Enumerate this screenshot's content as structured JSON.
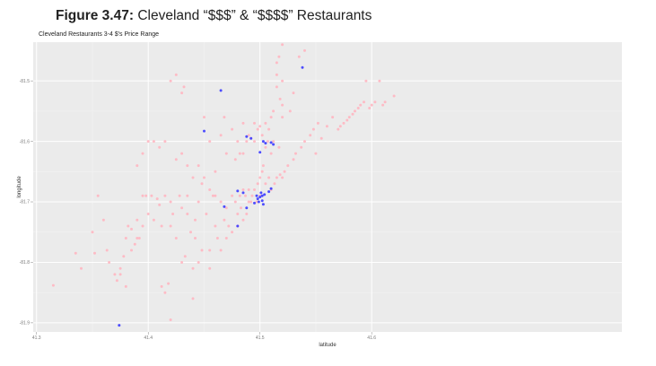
{
  "caption": {
    "label": "Figure 3.47:",
    "text": "Cleveland “$$$” & “$$$$” Restaurants"
  },
  "chart_data": {
    "type": "scatter",
    "title": "Cleveland Restaurants 3-4 $'s Price Range",
    "xlabel": "latitude",
    "ylabel": "longitude",
    "xlim": [
      41.297,
      41.824
    ],
    "ylim": [
      -81.915,
      -81.436
    ],
    "x_ticks": [
      41.3,
      41.4,
      41.5,
      41.6
    ],
    "x_tick_labels": [
      "41.3",
      "41.4",
      "41.5",
      "41.6"
    ],
    "y_ticks": [
      -81.9,
      -81.8,
      -81.7,
      -81.6,
      -81.5
    ],
    "y_tick_labels": [
      "-81.9",
      "-81.8",
      "-81.7",
      "-81.6",
      "-81.5"
    ],
    "grid": true,
    "background": "#ebebeb",
    "series": [
      {
        "color": "#ffb6c1",
        "points": [
          [
            41.315,
            -81.838
          ],
          [
            41.335,
            -81.785
          ],
          [
            41.34,
            -81.81
          ],
          [
            41.35,
            -81.75
          ],
          [
            41.352,
            -81.785
          ],
          [
            41.355,
            -81.69
          ],
          [
            41.36,
            -81.73
          ],
          [
            41.365,
            -81.8
          ],
          [
            41.37,
            -81.82
          ],
          [
            41.372,
            -81.83
          ],
          [
            41.375,
            -81.82
          ],
          [
            41.378,
            -81.79
          ],
          [
            41.38,
            -81.76
          ],
          [
            41.382,
            -81.74
          ],
          [
            41.385,
            -81.78
          ],
          [
            41.388,
            -81.77
          ],
          [
            41.39,
            -81.76
          ],
          [
            41.392,
            -81.76
          ],
          [
            41.395,
            -81.74
          ],
          [
            41.395,
            -81.69
          ],
          [
            41.398,
            -81.69
          ],
          [
            41.4,
            -81.6
          ],
          [
            41.4,
            -81.72
          ],
          [
            41.403,
            -81.69
          ],
          [
            41.405,
            -81.73
          ],
          [
            41.408,
            -81.695
          ],
          [
            41.41,
            -81.705
          ],
          [
            41.412,
            -81.74
          ],
          [
            41.412,
            -81.84
          ],
          [
            41.415,
            -81.69
          ],
          [
            41.415,
            -81.85
          ],
          [
            41.418,
            -81.835
          ],
          [
            41.42,
            -81.7
          ],
          [
            41.42,
            -81.74
          ],
          [
            41.422,
            -81.72
          ],
          [
            41.425,
            -81.76
          ],
          [
            41.425,
            -81.63
          ],
          [
            41.428,
            -81.69
          ],
          [
            41.43,
            -81.71
          ],
          [
            41.43,
            -81.8
          ],
          [
            41.433,
            -81.79
          ],
          [
            41.435,
            -81.72
          ],
          [
            41.435,
            -81.69
          ],
          [
            41.438,
            -81.75
          ],
          [
            41.44,
            -81.81
          ],
          [
            41.44,
            -81.86
          ],
          [
            41.442,
            -81.73
          ],
          [
            41.445,
            -81.8
          ],
          [
            41.445,
            -81.7
          ],
          [
            41.448,
            -81.78
          ],
          [
            41.45,
            -81.66
          ],
          [
            41.452,
            -81.72
          ],
          [
            41.455,
            -81.81
          ],
          [
            41.455,
            -81.78
          ],
          [
            41.458,
            -81.69
          ],
          [
            41.46,
            -81.74
          ],
          [
            41.462,
            -81.76
          ],
          [
            41.465,
            -81.7
          ],
          [
            41.465,
            -81.78
          ],
          [
            41.468,
            -81.73
          ],
          [
            41.47,
            -81.76
          ],
          [
            41.47,
            -81.71
          ],
          [
            41.472,
            -81.74
          ],
          [
            41.475,
            -81.69
          ],
          [
            41.475,
            -81.75
          ],
          [
            41.478,
            -81.7
          ],
          [
            41.48,
            -81.72
          ],
          [
            41.48,
            -81.74
          ],
          [
            41.482,
            -81.69
          ],
          [
            41.483,
            -81.71
          ],
          [
            41.485,
            -81.73
          ],
          [
            41.485,
            -81.68
          ],
          [
            41.487,
            -81.69
          ],
          [
            41.488,
            -81.72
          ],
          [
            41.49,
            -81.7
          ],
          [
            41.49,
            -81.68
          ],
          [
            41.492,
            -81.7
          ],
          [
            41.493,
            -81.69
          ],
          [
            41.495,
            -81.68
          ],
          [
            41.495,
            -81.6
          ],
          [
            41.497,
            -81.7
          ],
          [
            41.498,
            -81.67
          ],
          [
            41.5,
            -81.66
          ],
          [
            41.5,
            -81.69
          ],
          [
            41.502,
            -81.65
          ],
          [
            41.503,
            -81.64
          ],
          [
            41.505,
            -81.61
          ],
          [
            41.505,
            -81.67
          ],
          [
            41.507,
            -81.6
          ],
          [
            41.508,
            -81.66
          ],
          [
            41.51,
            -81.62
          ],
          [
            41.51,
            -81.68
          ],
          [
            41.512,
            -81.6
          ],
          [
            41.513,
            -81.67
          ],
          [
            41.515,
            -81.66
          ],
          [
            41.517,
            -81.61
          ],
          [
            41.518,
            -81.655
          ],
          [
            41.52,
            -81.66
          ],
          [
            41.52,
            -81.56
          ],
          [
            41.522,
            -81.65
          ],
          [
            41.525,
            -81.64
          ],
          [
            41.527,
            -81.55
          ],
          [
            41.53,
            -81.63
          ],
          [
            41.53,
            -81.52
          ],
          [
            41.532,
            -81.62
          ],
          [
            41.535,
            -81.46
          ],
          [
            41.537,
            -81.61
          ],
          [
            41.54,
            -81.6
          ],
          [
            41.54,
            -81.45
          ],
          [
            41.545,
            -81.59
          ],
          [
            41.548,
            -81.58
          ],
          [
            41.55,
            -81.62
          ],
          [
            41.552,
            -81.57
          ],
          [
            41.555,
            -81.595
          ],
          [
            41.56,
            -81.575
          ],
          [
            41.565,
            -81.56
          ],
          [
            41.57,
            -81.58
          ],
          [
            41.572,
            -81.575
          ],
          [
            41.575,
            -81.57
          ],
          [
            41.578,
            -81.565
          ],
          [
            41.58,
            -81.56
          ],
          [
            41.583,
            -81.555
          ],
          [
            41.585,
            -81.55
          ],
          [
            41.588,
            -81.545
          ],
          [
            41.59,
            -81.54
          ],
          [
            41.593,
            -81.535
          ],
          [
            41.595,
            -81.5
          ],
          [
            41.598,
            -81.545
          ],
          [
            41.6,
            -81.54
          ],
          [
            41.603,
            -81.535
          ],
          [
            41.607,
            -81.5
          ],
          [
            41.61,
            -81.54
          ],
          [
            41.612,
            -81.535
          ],
          [
            41.62,
            -81.525
          ],
          [
            41.488,
            -81.6
          ],
          [
            41.49,
            -81.59
          ],
          [
            41.492,
            -81.595
          ],
          [
            41.495,
            -81.57
          ],
          [
            41.498,
            -81.58
          ],
          [
            41.5,
            -81.575
          ],
          [
            41.502,
            -81.59
          ],
          [
            41.505,
            -81.57
          ],
          [
            41.508,
            -81.58
          ],
          [
            41.51,
            -81.56
          ],
          [
            41.512,
            -81.55
          ],
          [
            41.515,
            -81.47
          ],
          [
            41.515,
            -81.49
          ],
          [
            41.515,
            -81.51
          ],
          [
            41.517,
            -81.46
          ],
          [
            41.518,
            -81.53
          ],
          [
            41.52,
            -81.54
          ],
          [
            41.52,
            -81.44
          ],
          [
            41.52,
            -81.5
          ],
          [
            41.43,
            -81.52
          ],
          [
            41.432,
            -81.51
          ],
          [
            41.435,
            -81.64
          ],
          [
            41.44,
            -81.66
          ],
          [
            41.445,
            -81.64
          ],
          [
            41.45,
            -81.56
          ],
          [
            41.455,
            -81.6
          ],
          [
            41.46,
            -81.65
          ],
          [
            41.465,
            -81.59
          ],
          [
            41.468,
            -81.56
          ],
          [
            41.47,
            -81.62
          ],
          [
            41.475,
            -81.58
          ],
          [
            41.478,
            -81.63
          ],
          [
            41.48,
            -81.6
          ],
          [
            41.482,
            -81.62
          ],
          [
            41.485,
            -81.62
          ],
          [
            41.485,
            -81.57
          ],
          [
            41.39,
            -81.64
          ],
          [
            41.395,
            -81.62
          ],
          [
            41.405,
            -81.6
          ],
          [
            41.41,
            -81.61
          ],
          [
            41.415,
            -81.6
          ],
          [
            41.42,
            -81.5
          ],
          [
            41.425,
            -81.49
          ],
          [
            41.43,
            -81.62
          ],
          [
            41.39,
            -81.73
          ],
          [
            41.385,
            -81.745
          ],
          [
            41.363,
            -81.78
          ],
          [
            41.375,
            -81.81
          ],
          [
            41.38,
            -81.84
          ],
          [
            41.42,
            -81.895
          ],
          [
            41.455,
            -81.68
          ],
          [
            41.46,
            -81.69
          ],
          [
            41.448,
            -81.67
          ],
          [
            41.442,
            -81.76
          ]
        ]
      },
      {
        "color": "#3b3bff",
        "points": [
          [
            41.374,
            -81.904
          ],
          [
            41.45,
            -81.583
          ],
          [
            41.465,
            -81.516
          ],
          [
            41.468,
            -81.708
          ],
          [
            41.48,
            -81.74
          ],
          [
            41.48,
            -81.682
          ],
          [
            41.485,
            -81.685
          ],
          [
            41.488,
            -81.71
          ],
          [
            41.488,
            -81.592
          ],
          [
            41.492,
            -81.595
          ],
          [
            41.495,
            -81.702
          ],
          [
            41.497,
            -81.69
          ],
          [
            41.498,
            -81.695
          ],
          [
            41.499,
            -81.7
          ],
          [
            41.5,
            -81.692
          ],
          [
            41.501,
            -81.685
          ],
          [
            41.502,
            -81.698
          ],
          [
            41.502,
            -81.69
          ],
          [
            41.503,
            -81.704
          ],
          [
            41.504,
            -81.688
          ],
          [
            41.5,
            -81.618
          ],
          [
            41.503,
            -81.6
          ],
          [
            41.505,
            -81.603
          ],
          [
            41.51,
            -81.602
          ],
          [
            41.512,
            -81.605
          ],
          [
            41.508,
            -81.683
          ],
          [
            41.51,
            -81.678
          ],
          [
            41.538,
            -81.478
          ]
        ]
      }
    ]
  }
}
